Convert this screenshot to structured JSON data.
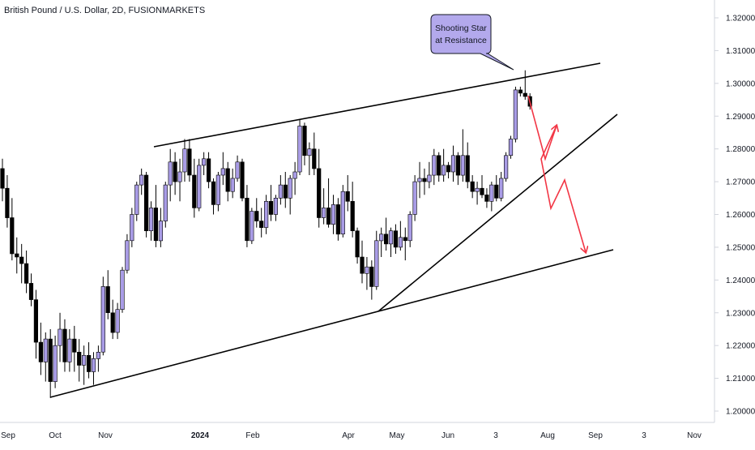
{
  "title": "British Pound / U.S. Dollar, 2D, FUSIONMARKETS",
  "callout": {
    "line1": "Shooting Star",
    "line2": "at Resistance"
  },
  "colors": {
    "up_candle": "#a99ce6",
    "down_candle": "#000000",
    "trendline": "#000000",
    "arrow": "#f23645",
    "callout_fill": "#b3a9ec"
  },
  "chart_data": {
    "type": "candlestick",
    "symbol": "British Pound / U.S. Dollar",
    "timeframe": "2D",
    "source": "FUSIONMARKETS",
    "ylim": [
      1.1955,
      1.3275
    ],
    "y_ticks": [
      "1.32000",
      "1.31000",
      "1.30000",
      "1.29000",
      "1.28000",
      "1.27000",
      "1.26000",
      "1.25000",
      "1.24000",
      "1.23000",
      "1.22000",
      "1.21000",
      "1.20000"
    ],
    "x_ticks": [
      {
        "label": "Sep",
        "bold": false
      },
      {
        "label": "Oct",
        "bold": false
      },
      {
        "label": "Nov",
        "bold": false
      },
      {
        "label": "2024",
        "bold": true
      },
      {
        "label": "Feb",
        "bold": false
      },
      {
        "label": "Apr",
        "bold": false
      },
      {
        "label": "May",
        "bold": false
      },
      {
        "label": "Jun",
        "bold": false
      },
      {
        "label": "3",
        "bold": false
      },
      {
        "label": "Aug",
        "bold": false
      },
      {
        "label": "Sep",
        "bold": false
      },
      {
        "label": "3",
        "bold": false
      },
      {
        "label": "Nov",
        "bold": false
      }
    ],
    "candles": [
      [
        1.274,
        1.277,
        1.264,
        1.268
      ],
      [
        1.268,
        1.272,
        1.256,
        1.259
      ],
      [
        1.259,
        1.265,
        1.246,
        1.248
      ],
      [
        1.248,
        1.253,
        1.242,
        1.247
      ],
      [
        1.247,
        1.251,
        1.239,
        1.245
      ],
      [
        1.245,
        1.249,
        1.236,
        1.239
      ],
      [
        1.239,
        1.242,
        1.232,
        1.234
      ],
      [
        1.234,
        1.237,
        1.216,
        1.221
      ],
      [
        1.221,
        1.227,
        1.211,
        1.215
      ],
      [
        1.215,
        1.224,
        1.209,
        1.222
      ],
      [
        1.222,
        1.225,
        1.204,
        1.209
      ],
      [
        1.209,
        1.223,
        1.207,
        1.22
      ],
      [
        1.22,
        1.23,
        1.215,
        1.225
      ],
      [
        1.225,
        1.228,
        1.212,
        1.215
      ],
      [
        1.215,
        1.225,
        1.212,
        1.222
      ],
      [
        1.222,
        1.226,
        1.212,
        1.218
      ],
      [
        1.218,
        1.222,
        1.209,
        1.214
      ],
      [
        1.214,
        1.22,
        1.208,
        1.217
      ],
      [
        1.217,
        1.221,
        1.21,
        1.212
      ],
      [
        1.212,
        1.218,
        1.208,
        1.216
      ],
      [
        1.216,
        1.22,
        1.212,
        1.218
      ],
      [
        1.218,
        1.241,
        1.217,
        1.238
      ],
      [
        1.238,
        1.243,
        1.228,
        1.23
      ],
      [
        1.23,
        1.234,
        1.222,
        1.224
      ],
      [
        1.224,
        1.233,
        1.222,
        1.231
      ],
      [
        1.231,
        1.244,
        1.23,
        1.243
      ],
      [
        1.243,
        1.254,
        1.242,
        1.252
      ],
      [
        1.252,
        1.262,
        1.25,
        1.26
      ],
      [
        1.26,
        1.27,
        1.258,
        1.269
      ],
      [
        1.269,
        1.274,
        1.266,
        1.272
      ],
      [
        1.272,
        1.273,
        1.253,
        1.255
      ],
      [
        1.255,
        1.264,
        1.252,
        1.262
      ],
      [
        1.262,
        1.269,
        1.25,
        1.252
      ],
      [
        1.252,
        1.262,
        1.25,
        1.258
      ],
      [
        1.258,
        1.27,
        1.256,
        1.269
      ],
      [
        1.269,
        1.28,
        1.264,
        1.276
      ],
      [
        1.276,
        1.279,
        1.266,
        1.27
      ],
      [
        1.27,
        1.277,
        1.264,
        1.273
      ],
      [
        1.273,
        1.283,
        1.27,
        1.28
      ],
      [
        1.28,
        1.283,
        1.27,
        1.272
      ],
      [
        1.272,
        1.277,
        1.259,
        1.262
      ],
      [
        1.262,
        1.277,
        1.261,
        1.275
      ],
      [
        1.275,
        1.279,
        1.272,
        1.277
      ],
      [
        1.277,
        1.279,
        1.268,
        1.27
      ],
      [
        1.27,
        1.271,
        1.26,
        1.263
      ],
      [
        1.263,
        1.273,
        1.261,
        1.272
      ],
      [
        1.272,
        1.279,
        1.269,
        1.274
      ],
      [
        1.274,
        1.276,
        1.264,
        1.267
      ],
      [
        1.267,
        1.274,
        1.265,
        1.271
      ],
      [
        1.271,
        1.278,
        1.27,
        1.276
      ],
      [
        1.276,
        1.277,
        1.264,
        1.265
      ],
      [
        1.265,
        1.269,
        1.25,
        1.252
      ],
      [
        1.252,
        1.262,
        1.251,
        1.261
      ],
      [
        1.261,
        1.265,
        1.256,
        1.258
      ],
      [
        1.258,
        1.262,
        1.253,
        1.256
      ],
      [
        1.256,
        1.266,
        1.254,
        1.264
      ],
      [
        1.264,
        1.269,
        1.258,
        1.26
      ],
      [
        1.26,
        1.266,
        1.258,
        1.265
      ],
      [
        1.265,
        1.272,
        1.263,
        1.269
      ],
      [
        1.269,
        1.273,
        1.262,
        1.265
      ],
      [
        1.265,
        1.272,
        1.26,
        1.271
      ],
      [
        1.271,
        1.276,
        1.266,
        1.273
      ],
      [
        1.273,
        1.289,
        1.272,
        1.287
      ],
      [
        1.287,
        1.288,
        1.275,
        1.278
      ],
      [
        1.278,
        1.282,
        1.272,
        1.28
      ],
      [
        1.28,
        1.285,
        1.272,
        1.274
      ],
      [
        1.274,
        1.28,
        1.256,
        1.259
      ],
      [
        1.259,
        1.268,
        1.257,
        1.262
      ],
      [
        1.262,
        1.271,
        1.256,
        1.257
      ],
      [
        1.257,
        1.266,
        1.254,
        1.263
      ],
      [
        1.263,
        1.265,
        1.252,
        1.254
      ],
      [
        1.254,
        1.269,
        1.253,
        1.267
      ],
      [
        1.267,
        1.272,
        1.261,
        1.264
      ],
      [
        1.264,
        1.27,
        1.253,
        1.255
      ],
      [
        1.255,
        1.256,
        1.245,
        1.247
      ],
      [
        1.247,
        1.252,
        1.239,
        1.242
      ],
      [
        1.242,
        1.247,
        1.237,
        1.244
      ],
      [
        1.244,
        1.246,
        1.234,
        1.238
      ],
      [
        1.238,
        1.255,
        1.237,
        1.252
      ],
      [
        1.252,
        1.256,
        1.247,
        1.254
      ],
      [
        1.254,
        1.259,
        1.249,
        1.251
      ],
      [
        1.251,
        1.256,
        1.247,
        1.255
      ],
      [
        1.255,
        1.257,
        1.248,
        1.25
      ],
      [
        1.25,
        1.258,
        1.249,
        1.253
      ],
      [
        1.253,
        1.256,
        1.246,
        1.252
      ],
      [
        1.252,
        1.261,
        1.25,
        1.26
      ],
      [
        1.26,
        1.272,
        1.258,
        1.27
      ],
      [
        1.27,
        1.276,
        1.265,
        1.271
      ],
      [
        1.271,
        1.274,
        1.266,
        1.27
      ],
      [
        1.27,
        1.276,
        1.268,
        1.272
      ],
      [
        1.272,
        1.28,
        1.269,
        1.278
      ],
      [
        1.278,
        1.279,
        1.27,
        1.272
      ],
      [
        1.272,
        1.28,
        1.27,
        1.275
      ],
      [
        1.275,
        1.276,
        1.271,
        1.273
      ],
      [
        1.273,
        1.281,
        1.27,
        1.278
      ],
      [
        1.278,
        1.279,
        1.269,
        1.272
      ],
      [
        1.272,
        1.286,
        1.27,
        1.278
      ],
      [
        1.278,
        1.282,
        1.268,
        1.27
      ],
      [
        1.27,
        1.272,
        1.265,
        1.267
      ],
      [
        1.267,
        1.27,
        1.263,
        1.268
      ],
      [
        1.268,
        1.272,
        1.265,
        1.266
      ],
      [
        1.266,
        1.268,
        1.262,
        1.264
      ],
      [
        1.264,
        1.27,
        1.261,
        1.269
      ],
      [
        1.269,
        1.272,
        1.264,
        1.265
      ],
      [
        1.265,
        1.273,
        1.264,
        1.271
      ],
      [
        1.271,
        1.279,
        1.27,
        1.278
      ],
      [
        1.278,
        1.284,
        1.277,
        1.283
      ],
      [
        1.283,
        1.299,
        1.282,
        1.298
      ],
      [
        1.298,
        1.299,
        1.296,
        1.297
      ],
      [
        1.297,
        1.304,
        1.295,
        1.296
      ],
      [
        1.296,
        1.297,
        1.292,
        1.293
      ]
    ]
  }
}
